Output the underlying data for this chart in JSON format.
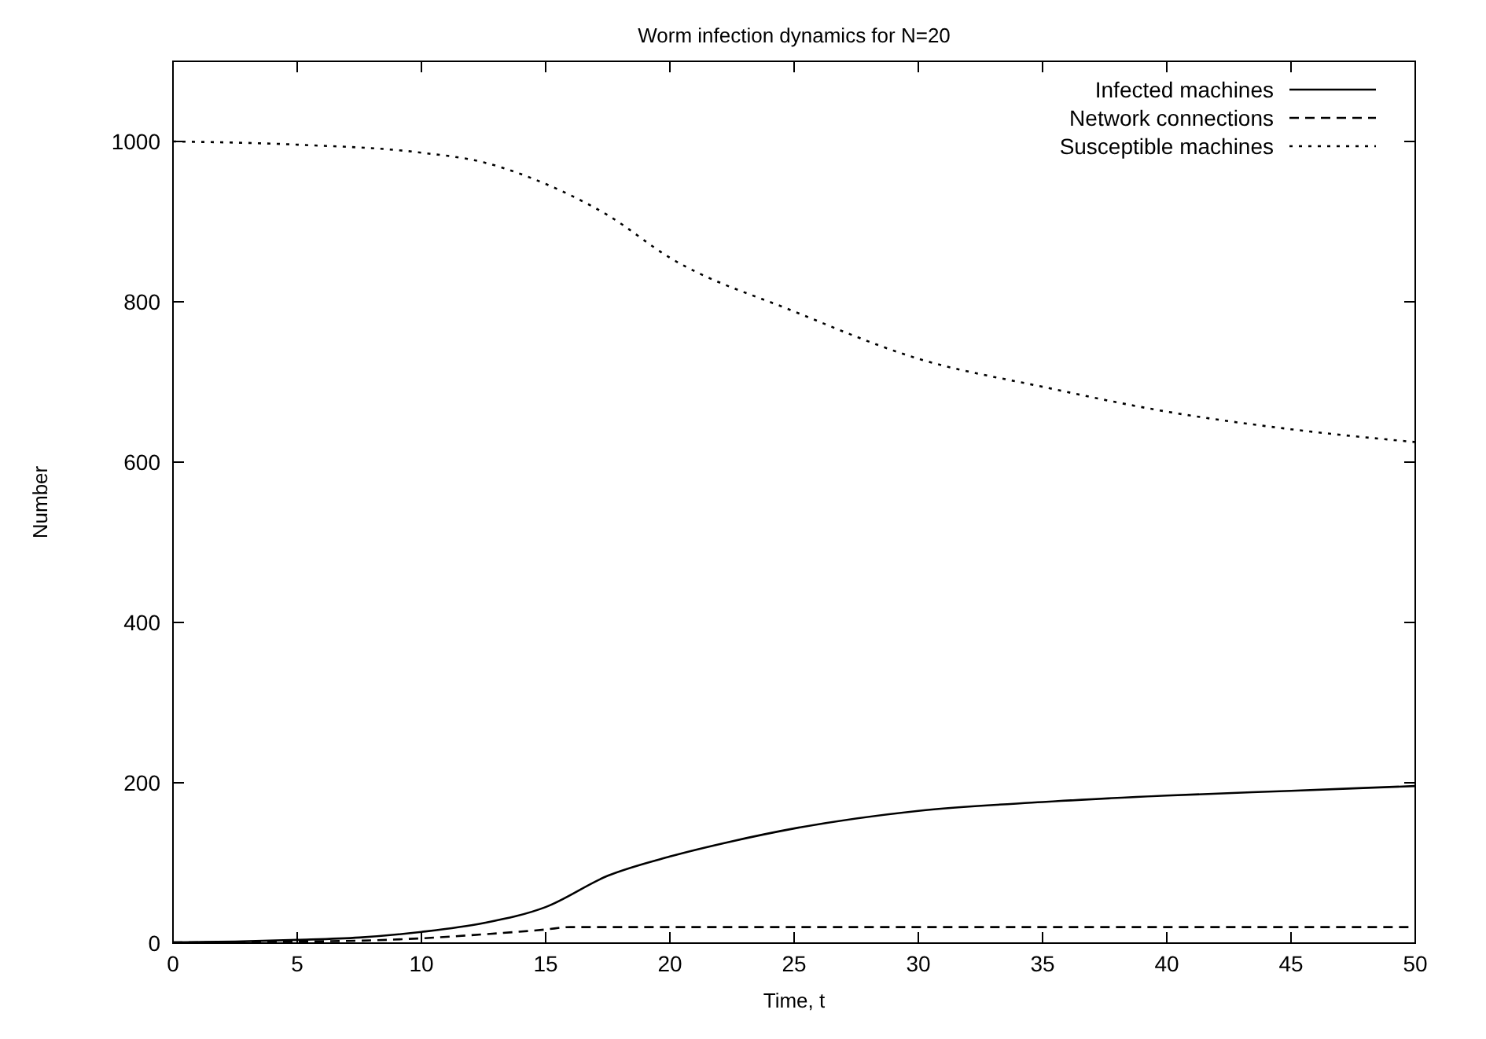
{
  "chart_data": {
    "type": "line",
    "title": "Worm infection dynamics for N=20",
    "xlabel": "Time, t",
    "ylabel": "Number",
    "xlim": [
      0,
      50
    ],
    "xticks": [
      0,
      5,
      10,
      15,
      20,
      25,
      30,
      35,
      40,
      45,
      50
    ],
    "ylim": [
      0,
      1100
    ],
    "yticks": [
      0,
      200,
      400,
      600,
      800,
      1000
    ],
    "grid": false,
    "legend": "top right",
    "marker": "none",
    "series": [
      {
        "name": "Infected machines",
        "color": "#000000",
        "line_style": "solid",
        "x": [
          0,
          2.5,
          5,
          7.5,
          10,
          12.5,
          15,
          17.5,
          20,
          22.5,
          25,
          30,
          35,
          40,
          45,
          50
        ],
        "values": [
          1,
          2,
          4,
          7,
          14,
          25,
          45,
          84,
          108,
          127,
          143,
          165,
          176,
          184,
          190,
          196
        ]
      },
      {
        "name": "Network connections",
        "color": "#000000",
        "line_style": "dashed",
        "x": [
          0,
          2.5,
          5,
          7.5,
          10,
          12.5,
          15,
          16,
          20,
          25,
          30,
          35,
          40,
          45,
          50
        ],
        "values": [
          1,
          1,
          2,
          3,
          6,
          11,
          17,
          20,
          20,
          20,
          20,
          20,
          20,
          20,
          20
        ]
      },
      {
        "name": "Susceptible machines",
        "color": "#000000",
        "line_style": "dotted",
        "x": [
          0,
          5,
          10,
          12.5,
          15,
          17.5,
          20,
          25,
          30,
          35,
          40,
          45,
          50
        ],
        "values": [
          1000,
          996,
          986,
          974,
          947,
          908,
          855,
          788,
          729,
          694,
          663,
          641,
          625
        ]
      }
    ]
  }
}
